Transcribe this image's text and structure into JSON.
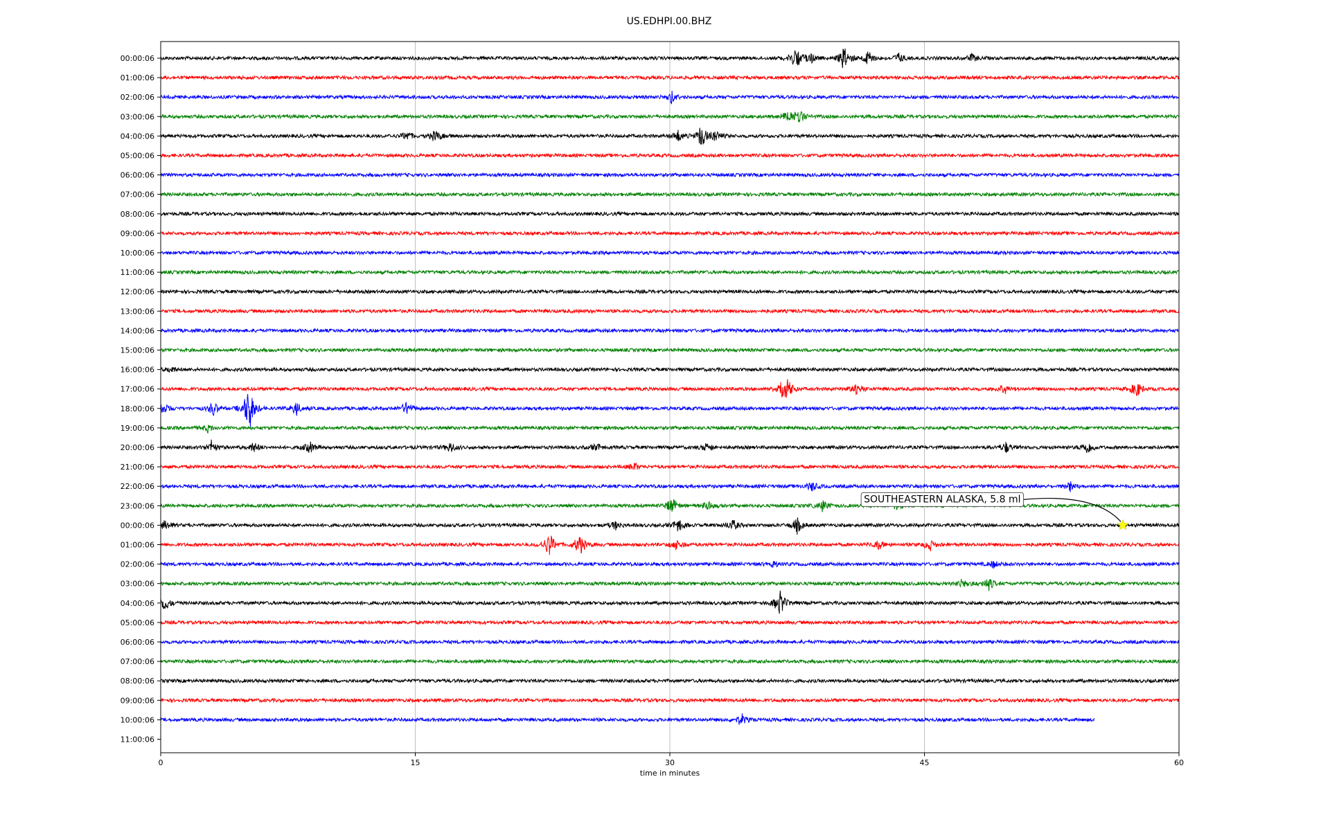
{
  "chart_data": {
    "type": "line",
    "title": "US.EDHPI.00.BHZ",
    "xlabel": "time in minutes",
    "ylabel": "",
    "xlim": [
      0,
      60
    ],
    "x_ticks": [
      "0",
      "15",
      "30",
      "45",
      "60"
    ],
    "grid": "vertical lines at x ticks",
    "colors_cycle": [
      "#000000",
      "#ff0000",
      "#0000ff",
      "#008000"
    ],
    "row_labels": [
      "00:00:06",
      "01:00:06",
      "02:00:06",
      "03:00:06",
      "04:00:06",
      "05:00:06",
      "06:00:06",
      "07:00:06",
      "08:00:06",
      "09:00:06",
      "10:00:06",
      "11:00:06",
      "12:00:06",
      "13:00:06",
      "14:00:06",
      "15:00:06",
      "16:00:06",
      "17:00:06",
      "18:00:06",
      "19:00:06",
      "20:00:06",
      "21:00:06",
      "22:00:06",
      "23:00:06",
      "00:00:06",
      "01:00:06",
      "02:00:06",
      "03:00:06",
      "04:00:06",
      "05:00:06",
      "06:00:06",
      "07:00:06",
      "08:00:06",
      "09:00:06",
      "10:00:06",
      "11:00:06"
    ],
    "trace_end_minutes": [
      60,
      60,
      60,
      60,
      60,
      60,
      60,
      60,
      60,
      60,
      60,
      60,
      60,
      60,
      60,
      60,
      60,
      60,
      60,
      60,
      60,
      60,
      60,
      60,
      60,
      60,
      60,
      60,
      60,
      60,
      60,
      60,
      60,
      60,
      55,
      0
    ],
    "bursts": [
      {
        "row": 0,
        "t": 37.4,
        "amp": 20
      },
      {
        "row": 0,
        "t": 38.3,
        "amp": 8
      },
      {
        "row": 0,
        "t": 40.3,
        "amp": 22
      },
      {
        "row": 0,
        "t": 41.7,
        "amp": 14
      },
      {
        "row": 0,
        "t": 43.5,
        "amp": 8
      },
      {
        "row": 0,
        "t": 47.8,
        "amp": 6
      },
      {
        "row": 2,
        "t": 30.1,
        "amp": 10
      },
      {
        "row": 3,
        "t": 36.9,
        "amp": 12
      },
      {
        "row": 3,
        "t": 37.6,
        "amp": 12
      },
      {
        "row": 4,
        "t": 14.5,
        "amp": 8
      },
      {
        "row": 4,
        "t": 16.2,
        "amp": 10
      },
      {
        "row": 4,
        "t": 30.5,
        "amp": 10
      },
      {
        "row": 4,
        "t": 31.9,
        "amp": 20
      },
      {
        "row": 4,
        "t": 32.7,
        "amp": 10
      },
      {
        "row": 16,
        "t": 0.6,
        "amp": 5
      },
      {
        "row": 17,
        "t": 36.6,
        "amp": 14
      },
      {
        "row": 17,
        "t": 36.9,
        "amp": 16
      },
      {
        "row": 17,
        "t": 41.0,
        "amp": 12
      },
      {
        "row": 17,
        "t": 49.7,
        "amp": 10
      },
      {
        "row": 17,
        "t": 57.5,
        "amp": 14
      },
      {
        "row": 18,
        "t": 0.2,
        "amp": 10
      },
      {
        "row": 18,
        "t": 3.1,
        "amp": 12
      },
      {
        "row": 18,
        "t": 5.2,
        "amp": 45
      },
      {
        "row": 18,
        "t": 8.0,
        "amp": 10
      },
      {
        "row": 18,
        "t": 14.5,
        "amp": 12
      },
      {
        "row": 19,
        "t": 2.8,
        "amp": 6
      },
      {
        "row": 20,
        "t": 3.0,
        "amp": 10
      },
      {
        "row": 20,
        "t": 5.5,
        "amp": 8
      },
      {
        "row": 20,
        "t": 8.8,
        "amp": 10
      },
      {
        "row": 20,
        "t": 17.1,
        "amp": 8
      },
      {
        "row": 20,
        "t": 25.7,
        "amp": 6
      },
      {
        "row": 20,
        "t": 32.2,
        "amp": 8
      },
      {
        "row": 20,
        "t": 49.8,
        "amp": 8
      },
      {
        "row": 20,
        "t": 54.6,
        "amp": 12
      },
      {
        "row": 21,
        "t": 27.9,
        "amp": 6
      },
      {
        "row": 22,
        "t": 38.4,
        "amp": 8
      },
      {
        "row": 22,
        "t": 53.6,
        "amp": 8
      },
      {
        "row": 23,
        "t": 30.1,
        "amp": 14
      },
      {
        "row": 23,
        "t": 32.2,
        "amp": 10
      },
      {
        "row": 23,
        "t": 39.0,
        "amp": 10
      },
      {
        "row": 23,
        "t": 43.4,
        "amp": 8
      },
      {
        "row": 24,
        "t": 0.3,
        "amp": 8
      },
      {
        "row": 24,
        "t": 26.8,
        "amp": 8
      },
      {
        "row": 24,
        "t": 30.5,
        "amp": 12
      },
      {
        "row": 24,
        "t": 33.7,
        "amp": 10
      },
      {
        "row": 24,
        "t": 37.5,
        "amp": 12
      },
      {
        "row": 25,
        "t": 22.9,
        "amp": 22
      },
      {
        "row": 25,
        "t": 24.7,
        "amp": 18
      },
      {
        "row": 25,
        "t": 30.4,
        "amp": 10
      },
      {
        "row": 25,
        "t": 42.3,
        "amp": 8
      },
      {
        "row": 25,
        "t": 45.3,
        "amp": 10
      },
      {
        "row": 26,
        "t": 36.1,
        "amp": 6
      },
      {
        "row": 26,
        "t": 49.1,
        "amp": 6
      },
      {
        "row": 27,
        "t": 47.3,
        "amp": 8
      },
      {
        "row": 27,
        "t": 48.8,
        "amp": 10
      },
      {
        "row": 28,
        "t": 0.2,
        "amp": 14
      },
      {
        "row": 28,
        "t": 36.5,
        "amp": 22
      },
      {
        "row": 34,
        "t": 34.2,
        "amp": 10
      }
    ],
    "annotation": {
      "text": "SOUTHEASTERN ALASKA, 5.8 ml",
      "row": 24,
      "t": 56.7,
      "marker": "yellow star",
      "marker_color": "#ffff00"
    }
  }
}
